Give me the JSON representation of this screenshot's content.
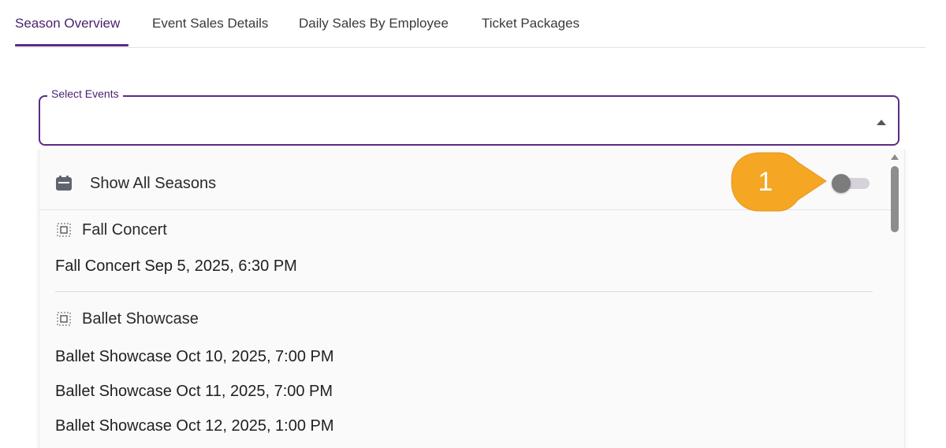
{
  "tabs": [
    {
      "label": "Season Overview",
      "active": true
    },
    {
      "label": "Event Sales Details",
      "active": false
    },
    {
      "label": "Daily Sales By Employee",
      "active": false
    },
    {
      "label": "Ticket Packages",
      "active": false
    }
  ],
  "select": {
    "label": "Select Events",
    "value": ""
  },
  "dropdown": {
    "show_all": {
      "icon": "calendar-icon",
      "label": "Show All Seasons",
      "toggle_on": false
    },
    "groups": [
      {
        "icon": "select-group-icon",
        "label": "Fall Concert",
        "items": [
          "Fall Concert Sep 5, 2025, 6:30 PM"
        ]
      },
      {
        "icon": "select-group-icon",
        "label": "Ballet Showcase",
        "items": [
          "Ballet Showcase Oct 10, 2025, 7:00 PM",
          "Ballet Showcase Oct 11, 2025, 7:00 PM",
          "Ballet Showcase Oct 12, 2025, 1:00 PM"
        ]
      }
    ]
  },
  "callout": {
    "number": "1",
    "color": "#f5a623"
  },
  "colors": {
    "accent": "#5b2a86",
    "accent_text": "#4a1f6e"
  }
}
